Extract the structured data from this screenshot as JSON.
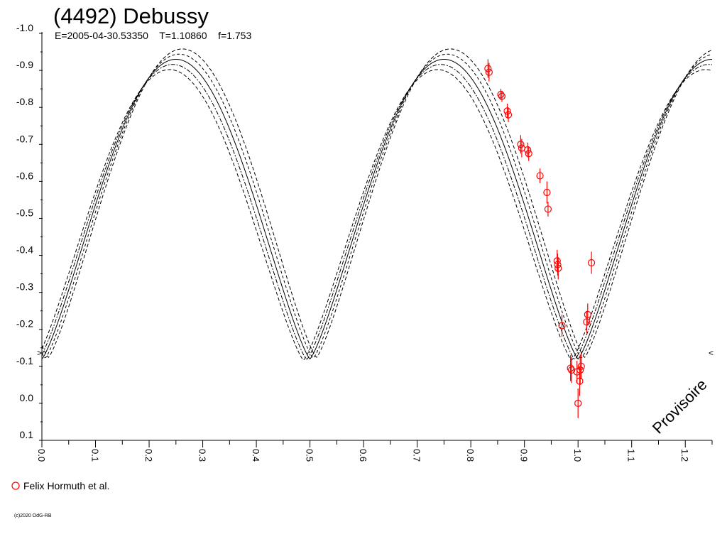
{
  "colors": {
    "background": "#ffffff",
    "axis": "#000000",
    "curve": "#000000",
    "data": "#ff0000",
    "text": "#000000"
  },
  "chart_data": {
    "type": "scatter",
    "title": "(4492) Debussy",
    "subtitle": "E=2005-04-30.53350    T=1.10860    f=1.753",
    "xlabel": "",
    "ylabel": "",
    "xlim": [
      0.0,
      1.25
    ],
    "ylim": [
      -1.0,
      0.1
    ],
    "y_inverted": true,
    "grid": false,
    "x_ticks": [
      "0.0",
      "0.1",
      "0.2",
      "0.3",
      "0.4",
      "0.5",
      "0.6",
      "0.7",
      "0.8",
      "0.9",
      "1.0",
      "1.1",
      "1.2"
    ],
    "y_ticks": [
      "-1.0",
      "-0.9",
      "-0.8",
      "-0.7",
      "-0.6",
      "-0.5",
      "-0.4",
      "-0.3",
      "-0.2",
      "-0.1",
      "0.0",
      "0.1"
    ],
    "edge_markers": [
      "<",
      ">"
    ],
    "watermark": "Provisoire",
    "legend_position": "bottom-left",
    "copyright": "(c)2020 OdG-RB",
    "series": [
      {
        "name": "Felix Hormuth et al.",
        "marker": "circle",
        "points": [
          {
            "x": 0.832,
            "y": -0.905,
            "err": 0.025
          },
          {
            "x": 0.834,
            "y": -0.895,
            "err": 0.025
          },
          {
            "x": 0.856,
            "y": -0.835,
            "err": 0.015
          },
          {
            "x": 0.858,
            "y": -0.83,
            "err": 0.015
          },
          {
            "x": 0.868,
            "y": -0.79,
            "err": 0.02
          },
          {
            "x": 0.87,
            "y": -0.78,
            "err": 0.02
          },
          {
            "x": 0.893,
            "y": -0.7,
            "err": 0.025
          },
          {
            "x": 0.895,
            "y": -0.69,
            "err": 0.025
          },
          {
            "x": 0.906,
            "y": -0.685,
            "err": 0.02
          },
          {
            "x": 0.908,
            "y": -0.675,
            "err": 0.02
          },
          {
            "x": 0.929,
            "y": -0.615,
            "err": 0.02
          },
          {
            "x": 0.942,
            "y": -0.57,
            "err": 0.03
          },
          {
            "x": 0.944,
            "y": -0.525,
            "err": 0.02
          },
          {
            "x": 0.961,
            "y": -0.385,
            "err": 0.03
          },
          {
            "x": 0.962,
            "y": -0.375,
            "err": 0.03
          },
          {
            "x": 0.963,
            "y": -0.365,
            "err": 0.03
          },
          {
            "x": 0.97,
            "y": -0.21,
            "err": 0.03
          },
          {
            "x": 0.986,
            "y": -0.095,
            "err": 0.035
          },
          {
            "x": 0.988,
            "y": -0.09,
            "err": 0.035
          },
          {
            "x": 0.998,
            "y": -0.085,
            "err": 0.03
          },
          {
            "x": 1.0,
            "y": 0.0,
            "err": 0.04
          },
          {
            "x": 1.003,
            "y": -0.06,
            "err": 0.04
          },
          {
            "x": 1.004,
            "y": -0.09,
            "err": 0.04
          },
          {
            "x": 1.006,
            "y": -0.1,
            "err": 0.035
          },
          {
            "x": 1.016,
            "y": -0.22,
            "err": 0.03
          },
          {
            "x": 1.018,
            "y": -0.24,
            "err": 0.03
          },
          {
            "x": 1.025,
            "y": -0.38,
            "err": 0.03
          }
        ]
      }
    ]
  }
}
